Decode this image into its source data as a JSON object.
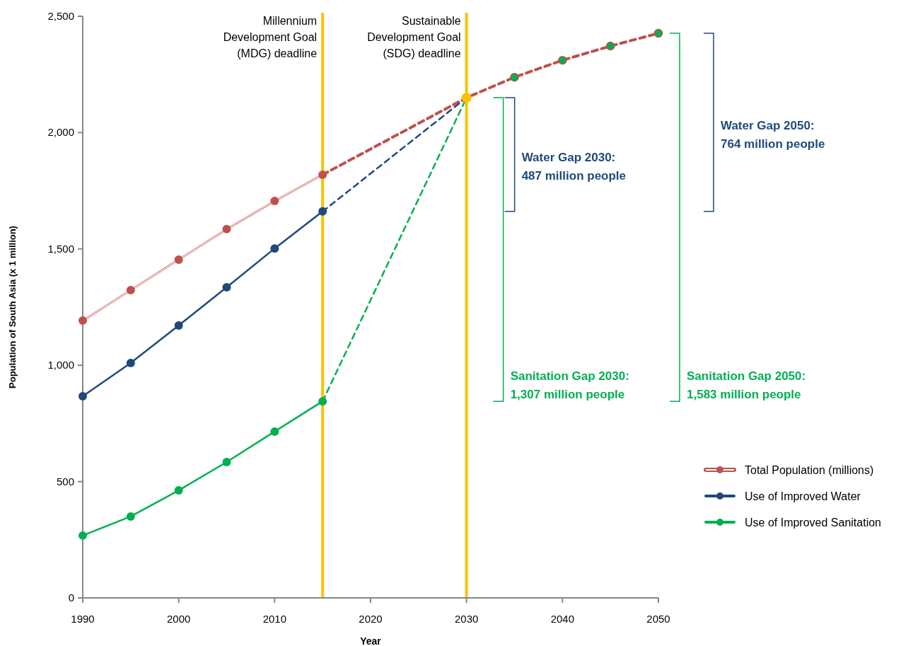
{
  "chart_data": {
    "type": "line",
    "xlabel": "Year",
    "ylabel": "Population of South Asia (x 1 million)",
    "xlim": [
      1990,
      2050
    ],
    "xticks": [
      1990,
      2000,
      2010,
      2020,
      2030,
      2040,
      2050
    ],
    "ylim": [
      0,
      2500
    ],
    "yticks": [
      0,
      {
        "value": 500,
        "label": "500"
      },
      {
        "value": 1000,
        "label": "1,000"
      },
      {
        "value": 1500,
        "label": "1,500"
      },
      {
        "value": 2000,
        "label": "2,000"
      },
      {
        "value": 2500,
        "label": "2,500"
      }
    ],
    "grid": false,
    "legend": "right",
    "marker": "circle",
    "line_style": "solid",
    "series": [
      {
        "name": "Total Population (millions)",
        "color": "#c0504d",
        "x": [
          1990,
          1995,
          2000,
          2005,
          2010,
          2015
        ],
        "values": [
          1192,
          1323,
          1454,
          1585,
          1706,
          1819
        ]
      },
      {
        "name": "Use of Improved Water",
        "color": "#1f497d",
        "x": [
          1990,
          1995,
          2000,
          2005,
          2010,
          2015
        ],
        "values": [
          867,
          1010,
          1171,
          1335,
          1502,
          1661
        ]
      },
      {
        "name": "Use of Improved Sanitation",
        "color": "#00b050",
        "x": [
          1990,
          1995,
          2000,
          2005,
          2010,
          2015
        ],
        "values": [
          268,
          350,
          462,
          584,
          715,
          845
        ]
      },
      {
        "type": "line",
        "color": "#c0504d",
        "line_style": "dashed",
        "marker": "none",
        "x": [
          2015,
          2030,
          2035,
          2040,
          2045,
          2050
        ],
        "values": [
          1819,
          2150,
          2238,
          2311,
          2372,
          2427
        ]
      },
      {
        "type": "line",
        "color": "#1f497d",
        "line_style": "dashed",
        "marker": "none",
        "x": [
          2015,
          2030
        ],
        "values": [
          1661,
          2150
        ]
      },
      {
        "type": "line",
        "color": "#00b050",
        "line_style": "dashed",
        "marker": "none",
        "x": [
          2015,
          2030
        ],
        "values": [
          845,
          2150
        ]
      },
      {
        "type": "scatter",
        "color": "#00b050",
        "marker": "circle",
        "x": [
          2035,
          2040,
          2045,
          2050
        ],
        "values": [
          2238,
          2311,
          2372,
          2427
        ]
      },
      {
        "type": "scatter",
        "color": "#ffc000",
        "marker": "circle",
        "x": [
          2030
        ],
        "values": [
          2150
        ]
      }
    ],
    "ref_lines": [
      {
        "axis": "x",
        "value": 2015,
        "label": "Millennium Development Goal (MDG) deadline",
        "color": "#ffc000"
      },
      {
        "axis": "x",
        "value": 2030,
        "label": "Sustainable Development Goal (SDG) deadline",
        "color": "#ffc000"
      }
    ],
    "annotations": [
      "Water Gap 2030: 487 million people",
      "Sanitation Gap 2030: 1,307 million people",
      "Water Gap 2050: 764 million people",
      "Sanitation Gap 2050: 1,583 million people"
    ]
  }
}
